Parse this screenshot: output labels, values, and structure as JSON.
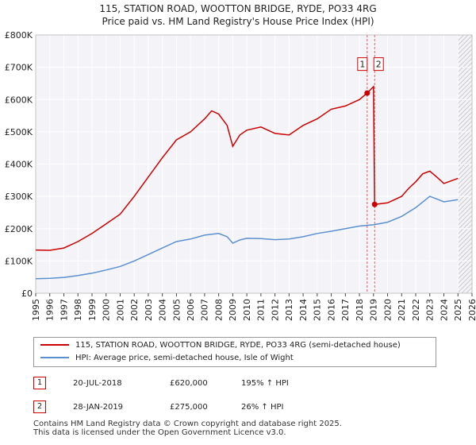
{
  "header": {
    "title": "115, STATION ROAD, WOOTTON BRIDGE, RYDE, PO33 4RG",
    "subtitle": "Price paid vs. HM Land Registry's House Price Index (HPI)"
  },
  "chart_data": {
    "type": "line",
    "title": "115, STATION ROAD, WOOTTON BRIDGE, RYDE, PO33 4RG",
    "subtitle": "Price paid vs. HM Land Registry's House Price Index (HPI)",
    "xlabel": "",
    "ylabel": "",
    "xlim": [
      1995,
      2026
    ],
    "ylim": [
      0,
      800000
    ],
    "grid": true,
    "xticks": [
      "1995",
      "1996",
      "1997",
      "1998",
      "1999",
      "2000",
      "2001",
      "2002",
      "2003",
      "2004",
      "2005",
      "2006",
      "2007",
      "2008",
      "2009",
      "2010",
      "2011",
      "2012",
      "2013",
      "2014",
      "2015",
      "2016",
      "2017",
      "2018",
      "2019",
      "2020",
      "2021",
      "2022",
      "2023",
      "2024",
      "2025",
      "2026"
    ],
    "yticks": [
      {
        "value": 0,
        "label": "£0"
      },
      {
        "value": 100000,
        "label": "£100K"
      },
      {
        "value": 200000,
        "label": "£200K"
      },
      {
        "value": 300000,
        "label": "£300K"
      },
      {
        "value": 400000,
        "label": "£400K"
      },
      {
        "value": 500000,
        "label": "£500K"
      },
      {
        "value": 600000,
        "label": "£600K"
      },
      {
        "value": 700000,
        "label": "£700K"
      },
      {
        "value": 800000,
        "label": "£800K"
      }
    ],
    "series": [
      {
        "name": "115, STATION ROAD, WOOTTON BRIDGE, RYDE, PO33 4RG (semi-detached house)",
        "color": "#cc0000",
        "points": [
          [
            1995.0,
            134000
          ],
          [
            1996.0,
            133000
          ],
          [
            1997.0,
            140000
          ],
          [
            1998.0,
            160000
          ],
          [
            1999.0,
            185000
          ],
          [
            2000.0,
            215000
          ],
          [
            2001.0,
            245000
          ],
          [
            2002.0,
            300000
          ],
          [
            2003.0,
            360000
          ],
          [
            2004.0,
            420000
          ],
          [
            2005.0,
            475000
          ],
          [
            2006.0,
            500000
          ],
          [
            2007.0,
            540000
          ],
          [
            2007.5,
            565000
          ],
          [
            2008.0,
            555000
          ],
          [
            2008.6,
            520000
          ],
          [
            2009.0,
            455000
          ],
          [
            2009.5,
            490000
          ],
          [
            2010.0,
            505000
          ],
          [
            2011.0,
            515000
          ],
          [
            2012.0,
            495000
          ],
          [
            2013.0,
            490000
          ],
          [
            2014.0,
            520000
          ],
          [
            2015.0,
            540000
          ],
          [
            2016.0,
            570000
          ],
          [
            2017.0,
            580000
          ],
          [
            2018.0,
            600000
          ],
          [
            2018.55,
            620000
          ],
          [
            2019.0,
            640000
          ],
          [
            2019.08,
            275000
          ],
          [
            2020.0,
            280000
          ],
          [
            2021.0,
            300000
          ],
          [
            2021.5,
            325000
          ],
          [
            2022.0,
            345000
          ],
          [
            2022.5,
            370000
          ],
          [
            2023.0,
            378000
          ],
          [
            2023.5,
            360000
          ],
          [
            2024.0,
            340000
          ],
          [
            2025.0,
            356000
          ]
        ]
      },
      {
        "name": "HPI: Average price, semi-detached house, Isle of Wight",
        "color": "#5b8fd0",
        "points": [
          [
            1995.0,
            45000
          ],
          [
            1996.0,
            46000
          ],
          [
            1997.0,
            49000
          ],
          [
            1998.0,
            55000
          ],
          [
            1999.0,
            62000
          ],
          [
            2000.0,
            72000
          ],
          [
            2001.0,
            83000
          ],
          [
            2002.0,
            100000
          ],
          [
            2003.0,
            120000
          ],
          [
            2004.0,
            140000
          ],
          [
            2005.0,
            160000
          ],
          [
            2006.0,
            168000
          ],
          [
            2007.0,
            180000
          ],
          [
            2008.0,
            185000
          ],
          [
            2008.6,
            175000
          ],
          [
            2009.0,
            155000
          ],
          [
            2009.5,
            165000
          ],
          [
            2010.0,
            170000
          ],
          [
            2011.0,
            169000
          ],
          [
            2012.0,
            166000
          ],
          [
            2013.0,
            168000
          ],
          [
            2014.0,
            175000
          ],
          [
            2015.0,
            185000
          ],
          [
            2016.0,
            192000
          ],
          [
            2017.0,
            200000
          ],
          [
            2018.0,
            208000
          ],
          [
            2019.0,
            212000
          ],
          [
            2020.0,
            220000
          ],
          [
            2021.0,
            238000
          ],
          [
            2022.0,
            265000
          ],
          [
            2023.0,
            300000
          ],
          [
            2023.5,
            292000
          ],
          [
            2024.0,
            283000
          ],
          [
            2025.0,
            290000
          ]
        ]
      }
    ],
    "transactions": [
      {
        "marker": "1",
        "date": "20-JUL-2018",
        "x": 2018.55,
        "price": 620000,
        "price_label": "£620,000",
        "hpi_label": "195% ↑ HPI"
      },
      {
        "marker": "2",
        "date": "28-JAN-2019",
        "x": 2019.08,
        "price": 275000,
        "price_label": "£275,000",
        "hpi_label": "26% ↑ HPI"
      }
    ],
    "projection_start": 2025.0
  },
  "legend": {
    "items": [
      {
        "label": "115, STATION ROAD, WOOTTON BRIDGE, RYDE, PO33 4RG (semi-detached house)",
        "color": "#cc0000"
      },
      {
        "label": "HPI: Average price, semi-detached house, Isle of Wight",
        "color": "#5b8fd0"
      }
    ]
  },
  "footer": {
    "line1": "Contains HM Land Registry data © Crown copyright and database right 2025.",
    "line2": "This data is licensed under the Open Government Licence v3.0."
  }
}
